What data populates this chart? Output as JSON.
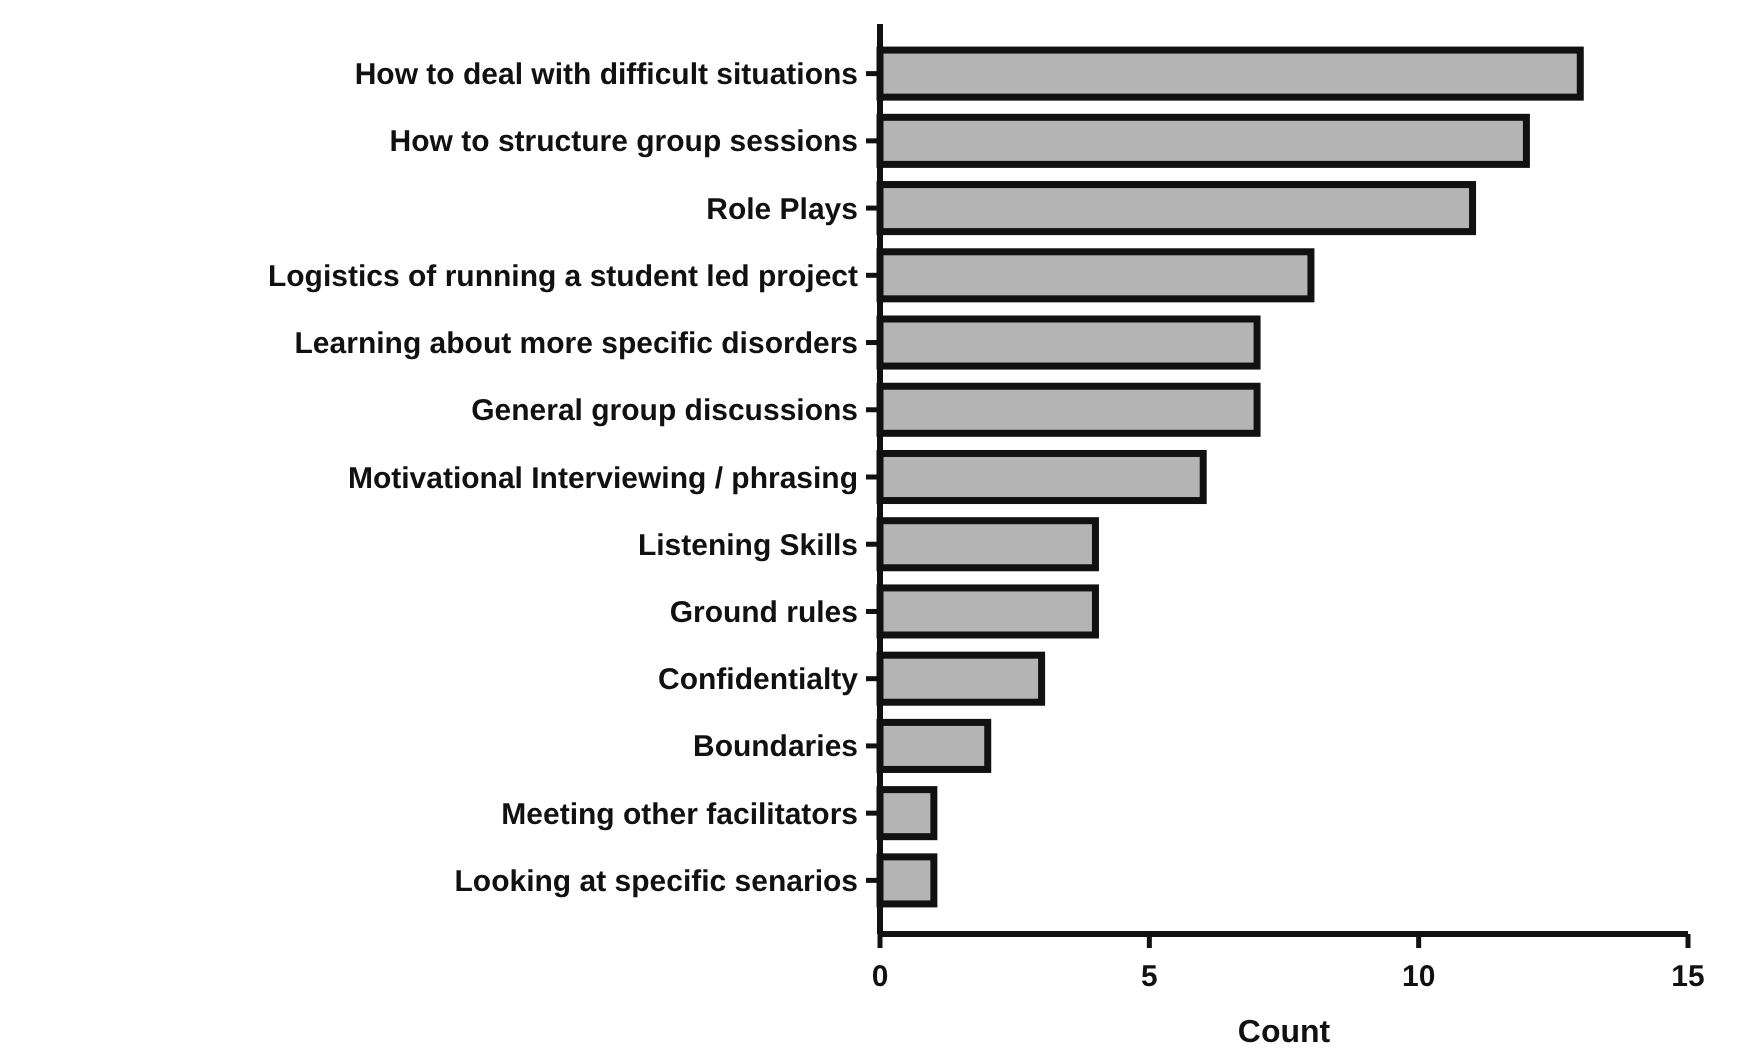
{
  "chart_data": {
    "type": "bar",
    "orientation": "horizontal",
    "xlabel": "Count",
    "categories": [
      "How to deal with difficult situations",
      "How to structure group sessions",
      "Role Plays",
      "Logistics of running a student led project",
      "Learning about more specific disorders",
      "General group discussions",
      "Motivational Interviewing / phrasing",
      "Listening Skills",
      "Ground rules",
      "Confidentialty",
      "Boundaries",
      "Meeting other facilitators",
      "Looking at specific senarios"
    ],
    "values": [
      13,
      12,
      11,
      8,
      7,
      7,
      6,
      4,
      4,
      3,
      2,
      1,
      1
    ],
    "color": "#b4b4b4",
    "xlim": [
      0,
      15
    ],
    "xticks": [
      0,
      5,
      10,
      15
    ],
    "grid": false
  }
}
